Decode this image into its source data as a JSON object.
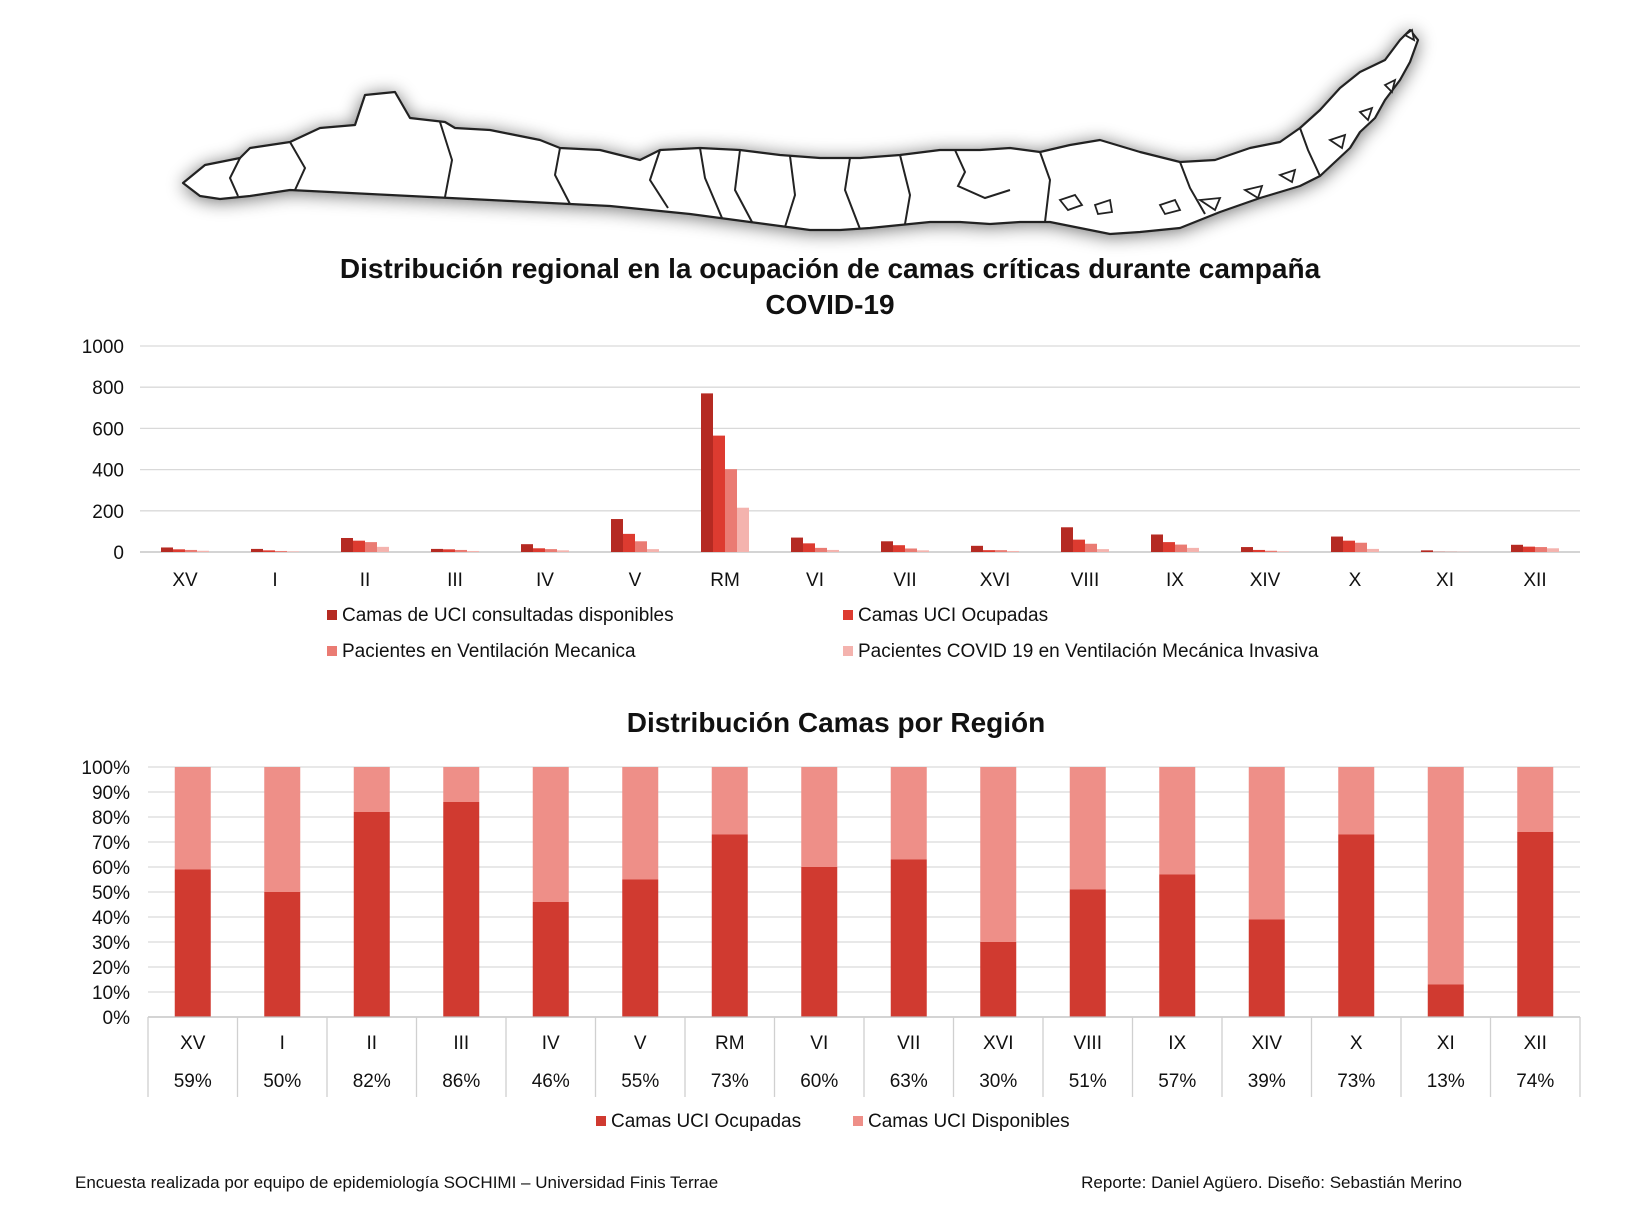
{
  "footer": {
    "left": "Encuesta realizada por equipo de epidemiología SOCHIMI – Universidad Finis Terrae",
    "right": "Reporte: Daniel Agüero. Diseño: Sebastián Merino"
  },
  "map": {
    "icon": "chile-regions-map-icon",
    "stroke": "#222222",
    "fill": "#ffffff"
  },
  "chart_data": [
    {
      "type": "bar",
      "title": "Distribución regional en la ocupación de camas críticas durante campaña COVID-19",
      "title_lines": [
        "Distribución regional en la ocupación de camas críticas durante campaña",
        "COVID-19"
      ],
      "categories": [
        "XV",
        "I",
        "II",
        "III",
        "IV",
        "V",
        "RM",
        "VI",
        "VII",
        "XVI",
        "VIII",
        "IX",
        "XIV",
        "X",
        "XI",
        "XII"
      ],
      "ylim": [
        0,
        1000
      ],
      "yticks": [
        0,
        200,
        400,
        600,
        800,
        1000
      ],
      "grid": true,
      "legend_position": "bottom",
      "series": [
        {
          "name": "Camas de UCI consultadas disponibles",
          "color": "#b52a22",
          "values": [
            22,
            15,
            68,
            15,
            38,
            160,
            770,
            70,
            52,
            30,
            120,
            85,
            24,
            75,
            8,
            35
          ]
        },
        {
          "name": "Camas UCI Ocupadas",
          "color": "#dd3b30",
          "values": [
            13,
            8,
            55,
            13,
            18,
            88,
            565,
            42,
            33,
            9,
            60,
            48,
            10,
            55,
            1,
            26
          ]
        },
        {
          "name": "Pacientes en Ventilación Mecanica",
          "color": "#ea7b73",
          "values": [
            10,
            5,
            48,
            10,
            14,
            52,
            402,
            20,
            17,
            9,
            40,
            36,
            6,
            45,
            1,
            24
          ]
        },
        {
          "name": "Pacientes COVID 19 en Ventilación Mecánica Invasiva",
          "color": "#f4b3ae",
          "values": [
            6,
            3,
            25,
            5,
            8,
            14,
            215,
            10,
            8,
            5,
            14,
            20,
            3,
            15,
            1,
            18
          ]
        }
      ]
    },
    {
      "type": "bar",
      "stacked": "percent",
      "title": "Distribución Camas por Región",
      "categories": [
        "XV",
        "I",
        "II",
        "III",
        "IV",
        "V",
        "RM",
        "VI",
        "VII",
        "XVI",
        "VIII",
        "IX",
        "XIV",
        "X",
        "XI",
        "XII"
      ],
      "ylim": [
        0,
        100
      ],
      "yticks": [
        "0%",
        "10%",
        "20%",
        "30%",
        "40%",
        "50%",
        "60%",
        "70%",
        "80%",
        "90%",
        "100%"
      ],
      "grid": true,
      "legend_position": "bottom",
      "table_labels": [
        "59%",
        "50%",
        "82%",
        "86%",
        "46%",
        "55%",
        "73%",
        "60%",
        "63%",
        "30%",
        "51%",
        "57%",
        "39%",
        "73%",
        "13%",
        "74%"
      ],
      "series": [
        {
          "name": "Camas UCI Ocupadas",
          "color": "#d03a30",
          "values": [
            59,
            50,
            82,
            86,
            46,
            55,
            73,
            60,
            63,
            30,
            51,
            57,
            39,
            73,
            13,
            74
          ]
        },
        {
          "name": "Camas UCI Disponibles",
          "color": "#ee8f88",
          "values": [
            41,
            50,
            18,
            14,
            54,
            45,
            27,
            40,
            37,
            70,
            49,
            43,
            61,
            27,
            87,
            26
          ]
        }
      ]
    }
  ]
}
